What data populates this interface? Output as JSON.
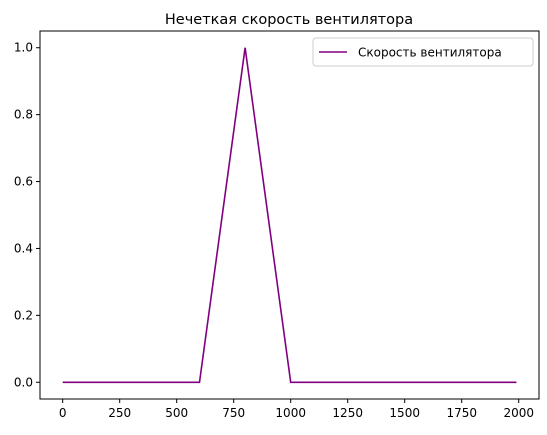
{
  "chart_data": {
    "type": "line",
    "title": "Нечеткая скорость вентилятора",
    "xlabel": "",
    "ylabel": "",
    "xlim": [
      -99.5,
      2088.95
    ],
    "ylim": [
      -0.05,
      1.05
    ],
    "xticks": [
      0,
      250,
      500,
      750,
      1000,
      1250,
      1500,
      1750,
      2000
    ],
    "yticks": [
      0.0,
      0.2,
      0.4,
      0.6,
      0.8,
      1.0
    ],
    "xtick_labels": [
      "0",
      "250",
      "500",
      "750",
      "1000",
      "1250",
      "1500",
      "1750",
      "2000"
    ],
    "ytick_labels": [
      "0.0",
      "0.2",
      "0.4",
      "0.6",
      "0.8",
      "1.0"
    ],
    "grid": false,
    "legend_position": "top-right",
    "series": [
      {
        "name": "Скорость вентилятора",
        "color": "#800080",
        "x": [
          0,
          600,
          800,
          1000,
          1990
        ],
        "y": [
          0,
          0,
          1,
          0,
          0
        ]
      }
    ]
  }
}
